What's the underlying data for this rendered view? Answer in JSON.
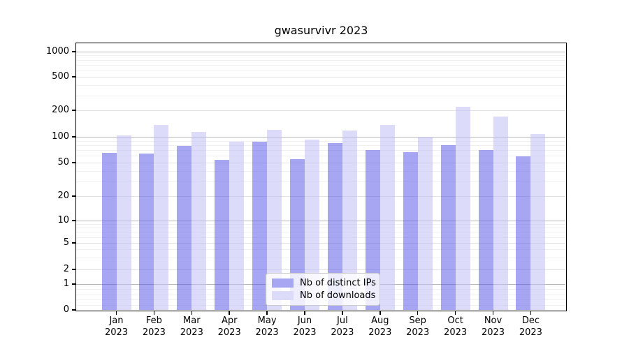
{
  "chart_data": {
    "type": "bar",
    "title": "gwasurvivr 2023",
    "categories": [
      "Jan 2023",
      "Feb 2023",
      "Mar 2023",
      "Apr 2023",
      "May 2023",
      "Jun 2023",
      "Jul 2023",
      "Aug 2023",
      "Sep 2023",
      "Oct 2023",
      "Nov 2023",
      "Dec 2023"
    ],
    "series": [
      {
        "name": "Nb of distinct IPs",
        "color": "#a6a6f2",
        "values": [
          65,
          64,
          79,
          54,
          88,
          55,
          85,
          70,
          66,
          80,
          70,
          59
        ]
      },
      {
        "name": "Nb of downloads",
        "color": "#dcdcfa",
        "values": [
          103,
          137,
          113,
          87,
          120,
          92,
          117,
          137,
          100,
          220,
          171,
          107
        ]
      }
    ],
    "xlabel": "",
    "ylabel": "",
    "y_scale": "asinh (log-like, linear near 0)",
    "y_ticks": [
      0,
      1,
      2,
      5,
      10,
      20,
      50,
      100,
      200,
      500,
      1000
    ],
    "ylim": [
      0,
      1250
    ],
    "grid": true,
    "legend_position": "lower center inside plot"
  },
  "colors": {
    "bar_distinct_ips": "#a6a6f2",
    "bar_downloads": "#dcdcfa",
    "grid_major": "#b8b8b8",
    "grid_mid": "#e2e2e2",
    "grid_minor": "#f0f0f0",
    "axis": "#000000",
    "background": "#ffffff"
  }
}
